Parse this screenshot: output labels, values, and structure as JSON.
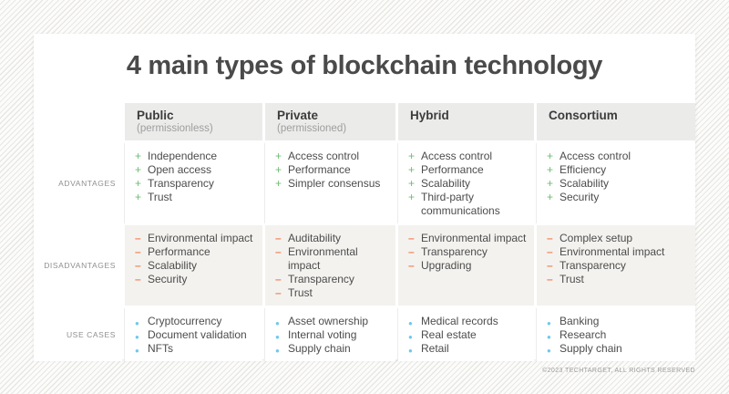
{
  "title": "4 main types of blockchain technology",
  "footer": {
    "copyright": "©2023 TECHTARGET, ALL RIGHTS RESERVED"
  },
  "colors": {
    "advantage_marker": "#6dbd70",
    "disadvantage_marker": "#f2875c",
    "use_case_marker": "#6ec9ed",
    "header_cell_bg": "#ebebea",
    "disadvantage_row_bg": "#f3f2ef"
  },
  "table": {
    "columns": [
      {
        "key": "public",
        "name": "Public",
        "subtitle": "(permissionless)"
      },
      {
        "key": "private",
        "name": "Private",
        "subtitle": "(permissioned)"
      },
      {
        "key": "hybrid",
        "name": "Hybrid",
        "subtitle": ""
      },
      {
        "key": "consortium",
        "name": "Consortium",
        "subtitle": ""
      }
    ],
    "rows": [
      {
        "key": "advantages",
        "label": "ADVANTAGES",
        "marker": "+",
        "icon": "plus-icon",
        "cells": [
          [
            "Independence",
            "Open access",
            "Transparency",
            "Trust"
          ],
          [
            "Access control",
            "Performance",
            "Simpler consensus"
          ],
          [
            "Access control",
            "Performance",
            "Scalability",
            "Third-party communications"
          ],
          [
            "Access control",
            "Efficiency",
            "Scalability",
            "Security"
          ]
        ]
      },
      {
        "key": "disadvantages",
        "label": "DISADVANTAGES",
        "marker": "–",
        "icon": "minus-icon",
        "cells": [
          [
            "Environmental impact",
            "Performance",
            "Scalability",
            "Security"
          ],
          [
            "Auditability",
            "Environmental impact",
            "Transparency",
            "Trust"
          ],
          [
            "Environmental impact",
            "Transparency",
            "Upgrading"
          ],
          [
            "Complex setup",
            "Environmental impact",
            "Transparency",
            "Trust"
          ]
        ]
      },
      {
        "key": "use-cases",
        "label": "USE CASES",
        "marker": "●",
        "icon": "bullet-icon",
        "cells": [
          [
            "Cryptocurrency",
            "Document validation",
            "NFTs"
          ],
          [
            "Asset ownership",
            "Internal voting",
            "Supply chain"
          ],
          [
            "Medical records",
            "Real estate",
            "Retail"
          ],
          [
            "Banking",
            "Research",
            "Supply chain"
          ]
        ]
      }
    ]
  }
}
